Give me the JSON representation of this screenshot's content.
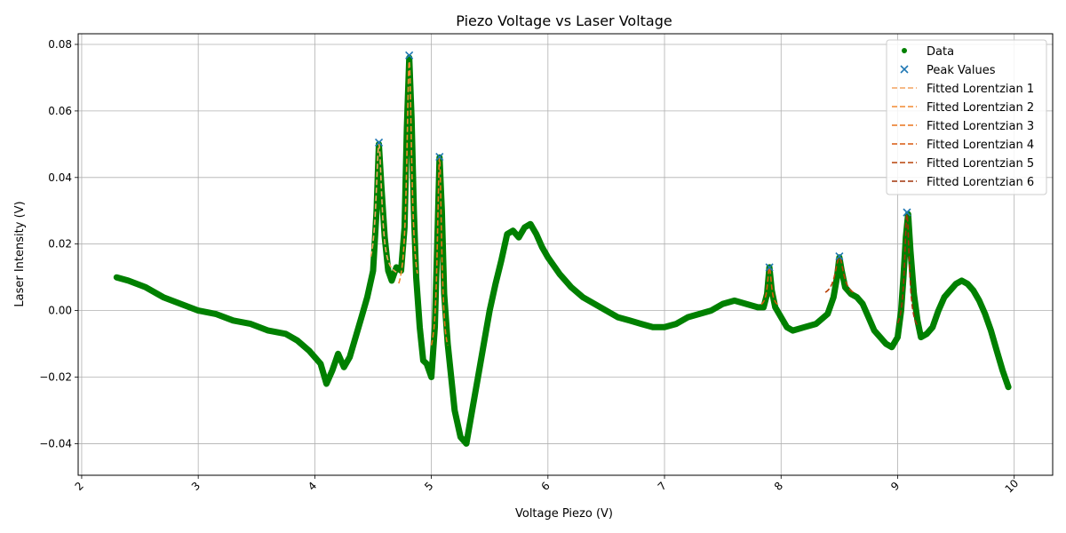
{
  "chart_data": {
    "type": "scatter",
    "title": "Piezo Voltage vs Laser Voltage",
    "xlabel": "Voltage Piezo (V)",
    "ylabel": "Laser Intensity (V)",
    "xlim": [
      1.97,
      10.33
    ],
    "ylim": [
      -0.0495,
      0.0832
    ],
    "xticks": [
      2,
      3,
      4,
      5,
      6,
      7,
      8,
      9,
      10
    ],
    "xtick_labels": [
      "2",
      "3",
      "4",
      "5",
      "6",
      "7",
      "8",
      "9",
      "10"
    ],
    "yticks": [
      -0.04,
      -0.02,
      0.0,
      0.02,
      0.04,
      0.06,
      0.08
    ],
    "ytick_labels": [
      "−0.04",
      "−0.02",
      "0.00",
      "0.02",
      "0.04",
      "0.06",
      "0.08"
    ],
    "grid": true,
    "legend_position": "top-right",
    "colors": {
      "data": "#008000",
      "peaks": "#1f77b4",
      "fits": [
        "#f4a460",
        "#f28a30",
        "#e8741c",
        "#d9590f",
        "#b84208",
        "#a0330a"
      ]
    },
    "series": [
      {
        "name": "Data",
        "kind": "scatter",
        "x": [
          2.3,
          2.4,
          2.55,
          2.7,
          2.85,
          3.0,
          3.15,
          3.3,
          3.45,
          3.6,
          3.75,
          3.85,
          3.95,
          4.05,
          4.1,
          4.15,
          4.2,
          4.25,
          4.3,
          4.35,
          4.4,
          4.45,
          4.5,
          4.53,
          4.55,
          4.57,
          4.6,
          4.63,
          4.66,
          4.7,
          4.74,
          4.77,
          4.79,
          4.81,
          4.83,
          4.85,
          4.87,
          4.9,
          4.93,
          4.96,
          5.0,
          5.03,
          5.05,
          5.07,
          5.09,
          5.11,
          5.14,
          5.17,
          5.2,
          5.25,
          5.3,
          5.35,
          5.4,
          5.45,
          5.5,
          5.55,
          5.6,
          5.65,
          5.7,
          5.75,
          5.8,
          5.85,
          5.9,
          5.95,
          6.0,
          6.1,
          6.2,
          6.3,
          6.4,
          6.5,
          6.6,
          6.7,
          6.8,
          6.9,
          7.0,
          7.1,
          7.2,
          7.3,
          7.4,
          7.5,
          7.6,
          7.7,
          7.8,
          7.85,
          7.88,
          7.9,
          7.92,
          7.95,
          8.0,
          8.05,
          8.1,
          8.2,
          8.3,
          8.4,
          8.45,
          8.48,
          8.5,
          8.52,
          8.55,
          8.6,
          8.65,
          8.7,
          8.75,
          8.8,
          8.85,
          8.9,
          8.95,
          9.0,
          9.03,
          9.05,
          9.07,
          9.09,
          9.11,
          9.14,
          9.17,
          9.2,
          9.25,
          9.3,
          9.35,
          9.4,
          9.45,
          9.5,
          9.55,
          9.6,
          9.65,
          9.7,
          9.75,
          9.8,
          9.85,
          9.9,
          9.95
        ],
        "y": [
          0.01,
          0.009,
          0.007,
          0.004,
          0.002,
          0.0,
          -0.001,
          -0.003,
          -0.004,
          -0.006,
          -0.007,
          -0.009,
          -0.012,
          -0.016,
          -0.022,
          -0.018,
          -0.013,
          -0.017,
          -0.014,
          -0.008,
          -0.002,
          0.004,
          0.012,
          0.03,
          0.05,
          0.038,
          0.022,
          0.012,
          0.009,
          0.013,
          0.012,
          0.025,
          0.055,
          0.076,
          0.058,
          0.03,
          0.01,
          -0.005,
          -0.015,
          -0.016,
          -0.02,
          -0.005,
          0.02,
          0.046,
          0.03,
          0.005,
          -0.01,
          -0.02,
          -0.03,
          -0.038,
          -0.04,
          -0.03,
          -0.02,
          -0.01,
          0.0,
          0.008,
          0.015,
          0.023,
          0.024,
          0.022,
          0.025,
          0.026,
          0.023,
          0.019,
          0.016,
          0.011,
          0.007,
          0.004,
          0.002,
          0.0,
          -0.002,
          -0.003,
          -0.004,
          -0.005,
          -0.005,
          -0.004,
          -0.002,
          -0.001,
          0.0,
          0.002,
          0.003,
          0.002,
          0.001,
          0.001,
          0.005,
          0.013,
          0.006,
          0.001,
          -0.002,
          -0.005,
          -0.006,
          -0.005,
          -0.004,
          -0.001,
          0.004,
          0.01,
          0.016,
          0.012,
          0.007,
          0.005,
          0.004,
          0.002,
          -0.002,
          -0.006,
          -0.008,
          -0.01,
          -0.011,
          -0.008,
          0.0,
          0.01,
          0.022,
          0.029,
          0.018,
          0.005,
          -0.003,
          -0.008,
          -0.007,
          -0.005,
          0.0,
          0.004,
          0.006,
          0.008,
          0.009,
          0.008,
          0.006,
          0.003,
          -0.001,
          -0.006,
          -0.012,
          -0.018,
          -0.023
        ]
      },
      {
        "name": "Peak Values",
        "kind": "marker-x",
        "x": [
          4.55,
          4.81,
          5.07,
          7.9,
          8.5,
          9.08
        ],
        "y": [
          0.0505,
          0.0767,
          0.0462,
          0.013,
          0.0163,
          0.0295
        ]
      },
      {
        "name": "Fitted Lorentzian 1",
        "kind": "dashed-line",
        "center": 4.55,
        "amplitude": 0.04,
        "width": 0.03,
        "offset": 0.01,
        "range": [
          4.48,
          4.7
        ]
      },
      {
        "name": "Fitted Lorentzian 2",
        "kind": "dashed-line",
        "center": 4.81,
        "amplitude": 0.072,
        "width": 0.025,
        "offset": 0.003,
        "range": [
          4.72,
          4.88
        ]
      },
      {
        "name": "Fitted Lorentzian 3",
        "kind": "dashed-line",
        "center": 5.07,
        "amplitude": 0.062,
        "width": 0.022,
        "offset": -0.016,
        "range": [
          5.0,
          5.14
        ]
      },
      {
        "name": "Fitted Lorentzian 4",
        "kind": "dashed-line",
        "center": 7.9,
        "amplitude": 0.012,
        "width": 0.02,
        "offset": 0.001,
        "range": [
          7.83,
          7.97
        ]
      },
      {
        "name": "Fitted Lorentzian 5",
        "kind": "dashed-line",
        "center": 8.5,
        "amplitude": 0.012,
        "width": 0.045,
        "offset": 0.004,
        "range": [
          8.38,
          8.62
        ]
      },
      {
        "name": "Fitted Lorentzian 6",
        "kind": "dashed-line",
        "center": 9.08,
        "amplitude": 0.036,
        "width": 0.025,
        "offset": -0.007,
        "range": [
          9.0,
          9.17
        ]
      }
    ]
  }
}
